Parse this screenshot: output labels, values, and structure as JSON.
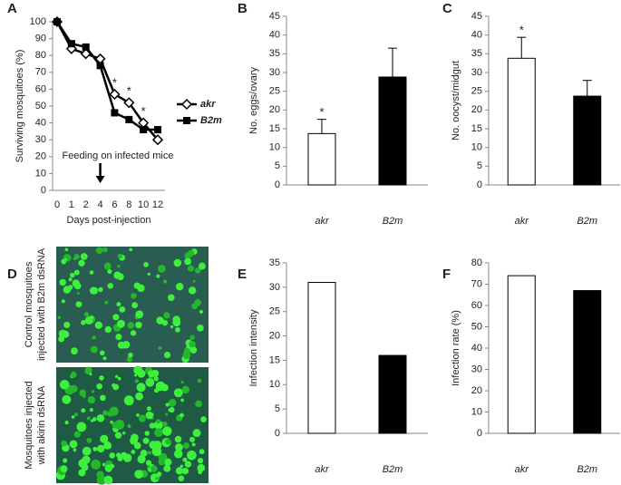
{
  "chart_data": [
    {
      "panel_label": "A",
      "type": "line",
      "ylabel": "Surviving mosquitoes (%)",
      "xlabel": "Days post-injection",
      "categories": [
        "0",
        "1",
        "2",
        "4",
        "6",
        "8",
        "10",
        "12"
      ],
      "ylim": [
        0,
        100
      ],
      "yticks": [
        0,
        10,
        20,
        30,
        40,
        50,
        60,
        70,
        80,
        90,
        100
      ],
      "annotation": {
        "text": "Feeding on infected mice",
        "at": "4"
      },
      "series": [
        {
          "name": "akr",
          "marker": "diamond",
          "color": "#000000",
          "values": [
            100,
            84,
            81,
            78,
            57,
            52,
            40,
            30
          ],
          "significance": [
            null,
            null,
            null,
            null,
            "*",
            "*",
            "*",
            null
          ]
        },
        {
          "name": "B2m",
          "marker": "square",
          "color": "#000000",
          "values": [
            100,
            87,
            85,
            74,
            46,
            42,
            36,
            36
          ]
        }
      ]
    },
    {
      "panel_label": "B",
      "type": "bar",
      "ylabel": "No. eggs/ovary",
      "categories": [
        "akr",
        "B2m"
      ],
      "values": [
        13.7,
        28.8
      ],
      "errors": [
        3.8,
        7.7
      ],
      "colors": [
        "#ffffff",
        "#000000"
      ],
      "significance": [
        "*",
        null
      ],
      "ylim": [
        0,
        45
      ],
      "yticks": [
        0,
        5,
        10,
        15,
        20,
        25,
        30,
        35,
        40,
        45
      ]
    },
    {
      "panel_label": "C",
      "type": "bar",
      "ylabel": "No. oocyst/midgut",
      "categories": [
        "akr",
        "B2m"
      ],
      "values": [
        33.8,
        23.7
      ],
      "errors": [
        5.6,
        4.2
      ],
      "colors": [
        "#ffffff",
        "#000000"
      ],
      "significance": [
        "*",
        null
      ],
      "ylim": [
        0,
        45
      ],
      "yticks": [
        0,
        5,
        10,
        15,
        20,
        25,
        30,
        35,
        40,
        45
      ]
    },
    {
      "panel_label": "E",
      "type": "bar",
      "ylabel": "Infection intensity",
      "categories": [
        "akr",
        "B2m"
      ],
      "values": [
        31,
        16
      ],
      "colors": [
        "#ffffff",
        "#000000"
      ],
      "ylim": [
        0,
        35
      ],
      "yticks": [
        0,
        5,
        10,
        15,
        20,
        25,
        30,
        35
      ]
    },
    {
      "panel_label": "F",
      "type": "bar",
      "ylabel": "Infection rate (%)",
      "categories": [
        "akr",
        "B2m"
      ],
      "values": [
        74,
        67
      ],
      "colors": [
        "#ffffff",
        "#000000"
      ],
      "ylim": [
        0,
        80
      ],
      "yticks": [
        0,
        10,
        20,
        30,
        40,
        50,
        60,
        70,
        80
      ]
    }
  ],
  "images": {
    "panel_label": "D",
    "captions": [
      [
        "Control mosquitoes",
        "injected with B2m dsRNA"
      ],
      [
        "Mosquitoes injected",
        "with akirin dsRNA"
      ]
    ]
  }
}
